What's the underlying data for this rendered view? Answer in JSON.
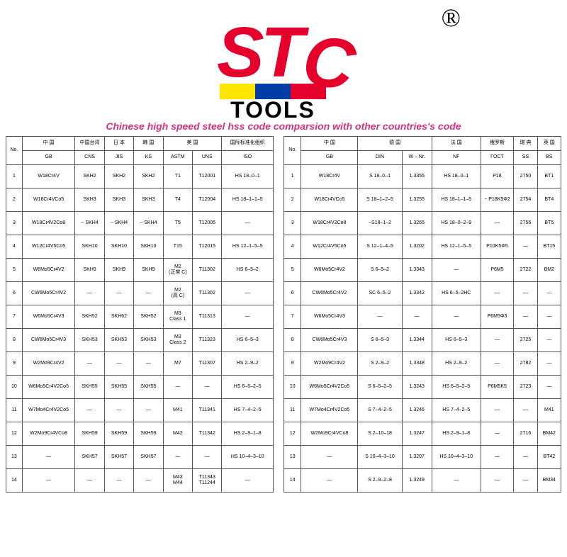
{
  "logo": {
    "letters": "STC",
    "word": "TOOLS",
    "bar_colors": [
      "#ffe600",
      "#003da5",
      "#e4002b"
    ],
    "letter_color": "#e4002b",
    "tools_color": "#000000",
    "trademark": "®"
  },
  "subtitle": {
    "text": "Chinese high speed  steel hss code comparsion with other countries's code",
    "color": "#d63384"
  },
  "table1": {
    "columns": [
      {
        "top": "No.",
        "sub": []
      },
      {
        "top": "中 国",
        "sub": [
          "GB"
        ]
      },
      {
        "top": "中国台湾",
        "sub": [
          "CNS"
        ]
      },
      {
        "top": "日 本",
        "sub": [
          "JIS"
        ]
      },
      {
        "top": "韩 国",
        "sub": [
          "KS"
        ]
      },
      {
        "top": "美 国",
        "sub": [
          "ASTM",
          "UNS"
        ]
      },
      {
        "top": "国际标准化组织",
        "sub": [
          "ISO"
        ]
      }
    ],
    "widths": [
      22,
      72,
      40,
      40,
      40,
      40,
      40,
      70
    ],
    "rows": [
      [
        "1",
        "W18Cr4V",
        "SKH2",
        "SKH2",
        "SKH2",
        "T1",
        "T12001",
        "HS 18–0–1"
      ],
      [
        "2",
        "W18Cr4VCo5",
        "SKH3",
        "SKH3",
        "SKH3",
        "T4",
        "T12004",
        "HS 18–1–1–5"
      ],
      [
        "3",
        "W18Cr4V2Co8",
        "~ SKH4",
        "~ SKH4",
        "~ SKH4",
        "T5",
        "T12005",
        "—"
      ],
      [
        "4",
        "W12Cr4V5Co5",
        "SKH10",
        "SKH10",
        "SKH10",
        "T15",
        "T12015",
        "HS 12–1–5–5"
      ],
      [
        "5",
        "W6Mo5Cr4V2",
        "SKH9",
        "SKH9",
        "SKH9",
        "M2\n(正常 C)",
        "T11302",
        "HS 6–5–2"
      ],
      [
        "6",
        "CW6Mo5Cr4V2",
        "—",
        "—",
        "—",
        "M2\n(高 C)",
        "T11302",
        "—"
      ],
      [
        "7",
        "W6Mo5Cr4V3",
        "SKH52",
        "SKH62",
        "SKH52",
        "M3\nClass 1",
        "T11313",
        "—"
      ],
      [
        "8",
        "CW6Mo5Cr4V3",
        "SKH53",
        "SKH53",
        "SKH53",
        "M3\nClass 2",
        "T11323",
        "HS 6–5–3"
      ],
      [
        "9",
        "W2Mo9Cr4V2",
        "—",
        "—",
        "—",
        "M7",
        "T11307",
        "HS 2–9–2"
      ],
      [
        "10",
        "W6Mo5Cr4V2Co5",
        "SKH55",
        "SKH55",
        "SKH55",
        "—",
        "—",
        "HS 6–5–2–5"
      ],
      [
        "11",
        "W7Mo4Cr4V2Co5",
        "—",
        "—",
        "—",
        "M41",
        "T11341",
        "HS 7–4–2–5"
      ],
      [
        "12",
        "W2Mo9Cr4VCo8",
        "SKH59",
        "SKH59",
        "SKH59",
        "M42",
        "T11342",
        "HS 2–9–1–8"
      ],
      [
        "13",
        "—",
        "SKH57",
        "SKH57",
        "SKH57",
        "—",
        "—",
        "HS 10–4–3–10"
      ],
      [
        "14",
        "—",
        "—",
        "—",
        "—",
        "M43\nM44",
        "T11343\nT11244",
        "—"
      ]
    ]
  },
  "table2": {
    "columns": [
      {
        "top": "No.",
        "sub": []
      },
      {
        "top": "中 国",
        "sub": [
          "GB"
        ]
      },
      {
        "top": "德 国",
        "sub": [
          "DIN",
          "W – Nr."
        ]
      },
      {
        "top": "法 国",
        "sub": [
          "NF"
        ]
      },
      {
        "top": "俄罗斯",
        "sub": [
          "ΓOCT"
        ]
      },
      {
        "top": "瑞 典",
        "sub": [
          "SS"
        ]
      },
      {
        "top": "英 国",
        "sub": [
          "BS"
        ]
      }
    ],
    "widths": [
      22,
      72,
      56,
      38,
      62,
      42,
      30,
      30
    ],
    "rows": [
      [
        "1",
        "W18Cr4V",
        "S 18–0–1",
        "1.3355",
        "HS 18–0–1",
        "P18",
        "2750",
        "BT1"
      ],
      [
        "2",
        "W18Cr4VCo5",
        "S 18–1–2–5",
        "1.3255",
        "HS 18–1–1–5",
        "~ P18K5Φ2",
        "2754",
        "BT4"
      ],
      [
        "3",
        "W18Cr4V2Co8",
        "~S18–1–2",
        "1.3265",
        "HS 18–0–2–9",
        "—",
        "2756",
        "BT5"
      ],
      [
        "4",
        "W12Cr4V5Co5",
        "S 12–1–4–5",
        "1.3202",
        "HS 12–1–5–5",
        "P10K5Φ5",
        "—",
        "BT15"
      ],
      [
        "5",
        "W6Mo5Cr4V2",
        "S 6–5–2",
        "1.3343",
        "—",
        "P6M5",
        "2722",
        "BM2"
      ],
      [
        "6",
        "CW6Mo5Cr4V2",
        "SC 6–5–2",
        "1.3342",
        "HS 6–5–2HC",
        "—",
        "—",
        "—"
      ],
      [
        "7",
        "W6Mo5Cr4V3",
        "—",
        "—",
        "—",
        "P6M5Φ3",
        "—",
        "—"
      ],
      [
        "8",
        "CW6Mo5Cr4V3",
        "S 6–5–3",
        "1.3344",
        "HS 6–5–3",
        "—",
        "2725",
        "—"
      ],
      [
        "9",
        "W2Mo9Cr4V2",
        "S 2–9–2",
        "1.3348",
        "HS 2–9–2",
        "—",
        "2782",
        "—"
      ],
      [
        "10",
        "W6Mo5Cr4V2Co5",
        "S 6–5–2–5",
        "1.3243",
        "HS 6–5–2–5",
        "P6M5K5",
        "2723",
        "—"
      ],
      [
        "11",
        "W7Mo4Cr4V2Co5",
        "S 7–4–2–5",
        "1.3246",
        "HS 7–4–2–5",
        "—",
        "—",
        "M41"
      ],
      [
        "12",
        "W2Mo9Cr4VCo8",
        "S 2–10–18",
        "1.3247",
        "HS 2–9–1–8",
        "—",
        "2716",
        "BM42"
      ],
      [
        "13",
        "—",
        "S 10–4–3–10",
        "1.3207",
        "HS 10–4–3–10",
        "—",
        "—",
        "BT42"
      ],
      [
        "14",
        "—",
        "S 2–9–2–8",
        "1.3249",
        "—",
        "—",
        "—",
        "BM34"
      ]
    ]
  }
}
